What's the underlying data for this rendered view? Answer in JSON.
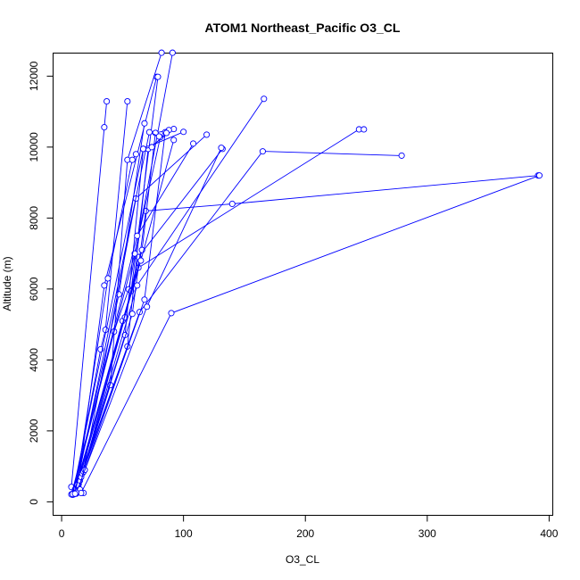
{
  "chart_data": {
    "type": "line",
    "title": "ATOM1 Northeast_Pacific O3_CL",
    "xlabel": "O3_CL",
    "ylabel": "Altitude (m)",
    "xlim": [
      -7,
      403
    ],
    "ylim": [
      -380,
      12650
    ],
    "xticks": [
      0,
      100,
      200,
      300,
      400
    ],
    "yticks": [
      0,
      2000,
      4000,
      6000,
      8000,
      10000,
      12000
    ],
    "grid": false,
    "legend": "none",
    "colors": {
      "series": "#0000ff",
      "axes": "#000000"
    },
    "profiles": [
      [
        [
          18,
          250
        ],
        [
          8,
          420
        ],
        [
          35,
          10560
        ],
        [
          37,
          11290
        ]
      ],
      [
        [
          10,
          210
        ],
        [
          32,
          4300
        ],
        [
          36,
          4850
        ],
        [
          54,
          11290
        ]
      ],
      [
        [
          12,
          230
        ],
        [
          40,
          3290
        ],
        [
          54,
          9640
        ],
        [
          82,
          12660
        ]
      ],
      [
        [
          9,
          200
        ],
        [
          43,
          4800
        ],
        [
          55,
          5990
        ],
        [
          91,
          12660
        ]
      ],
      [
        [
          13,
          300
        ],
        [
          35,
          6100
        ],
        [
          78,
          11980
        ]
      ],
      [
        [
          11,
          260
        ],
        [
          38,
          6300
        ],
        [
          58,
          9640
        ],
        [
          61,
          9800
        ]
      ],
      [
        [
          10,
          250
        ],
        [
          47,
          5850
        ],
        [
          68,
          10670
        ]
      ],
      [
        [
          12,
          400
        ],
        [
          57,
          5940
        ],
        [
          79,
          11980
        ]
      ],
      [
        [
          11,
          350
        ],
        [
          50,
          5100
        ],
        [
          63,
          6600
        ],
        [
          244,
          10500
        ],
        [
          248,
          10500
        ]
      ],
      [
        [
          13,
          450
        ],
        [
          52,
          5200
        ],
        [
          63,
          6900
        ],
        [
          132,
          9950
        ]
      ],
      [
        [
          14,
          500
        ],
        [
          52,
          4700
        ],
        [
          67,
          9950
        ],
        [
          100,
          10430
        ]
      ],
      [
        [
          13,
          480
        ],
        [
          54,
          4380
        ],
        [
          71,
          9950
        ],
        [
          92,
          10510
        ]
      ],
      [
        [
          15,
          600
        ],
        [
          58,
          5300
        ],
        [
          69,
          8200
        ],
        [
          140,
          8400
        ],
        [
          391,
          9200
        ]
      ],
      [
        [
          16,
          700
        ],
        [
          62,
          6100
        ],
        [
          166,
          11360
        ]
      ],
      [
        [
          17,
          800
        ],
        [
          64,
          5350
        ],
        [
          165,
          9880
        ],
        [
          279,
          9760
        ]
      ],
      [
        [
          18,
          850
        ],
        [
          66,
          7100
        ],
        [
          77,
          10400
        ],
        [
          88,
          10480
        ]
      ],
      [
        [
          19,
          900
        ],
        [
          68,
          5700
        ],
        [
          85,
          10420
        ]
      ],
      [
        [
          15,
          350
        ],
        [
          61,
          8550
        ],
        [
          119,
          10350
        ]
      ],
      [
        [
          16,
          250
        ],
        [
          90,
          5320
        ],
        [
          392,
          9200
        ]
      ],
      [
        [
          8,
          210
        ],
        [
          60,
          7000
        ],
        [
          81,
          10280
        ]
      ],
      [
        [
          9,
          230
        ],
        [
          62,
          7500
        ],
        [
          108,
          10100
        ]
      ],
      [
        [
          10,
          240
        ],
        [
          65,
          6800
        ],
        [
          92,
          10200
        ]
      ],
      [
        [
          12,
          260
        ],
        [
          70,
          5500
        ],
        [
          131,
          9980
        ]
      ],
      [
        [
          9,
          220
        ],
        [
          67,
          9950
        ],
        [
          74,
          10000
        ],
        [
          86,
          10400
        ]
      ],
      [
        [
          11,
          230
        ],
        [
          72,
          10420
        ],
        [
          80,
          10300
        ]
      ]
    ]
  }
}
